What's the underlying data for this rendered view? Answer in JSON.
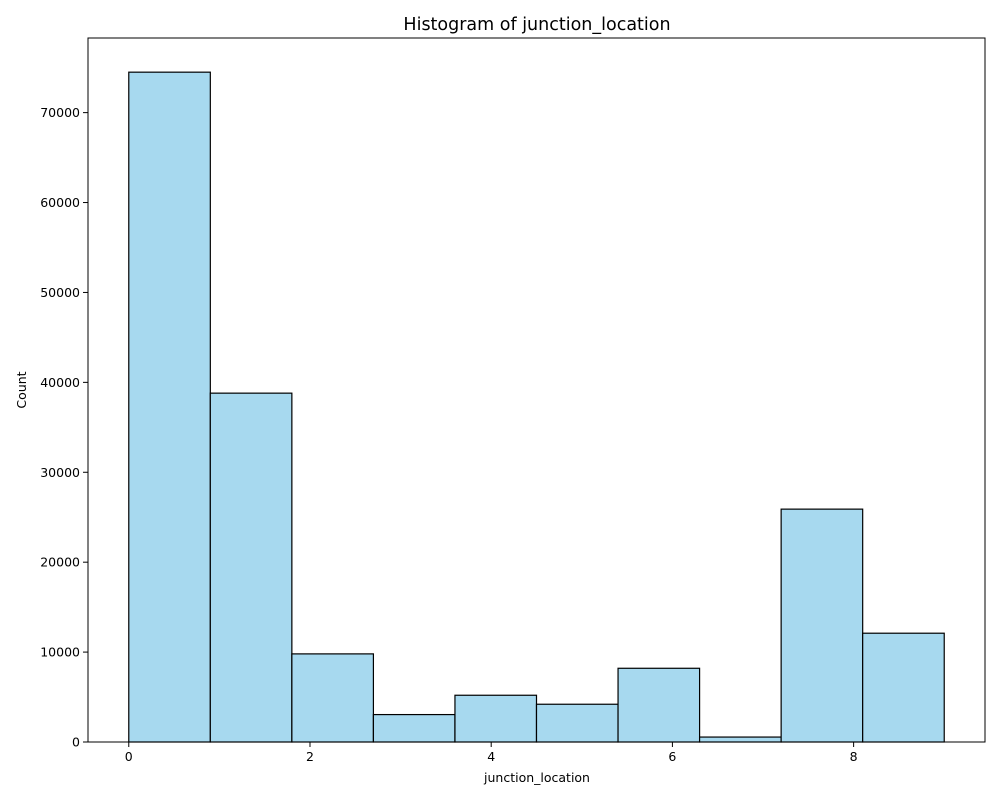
{
  "chart_data": {
    "type": "bar",
    "title": "Histogram of junction_location",
    "xlabel": "junction_location",
    "ylabel": "Count",
    "bin_edges": [
      0,
      0.9,
      1.8,
      2.7,
      3.6,
      4.5,
      5.4,
      6.3,
      7.2,
      8.1,
      9.0
    ],
    "values": [
      74500,
      38800,
      9800,
      3050,
      5200,
      4200,
      8200,
      550,
      25900,
      12100
    ],
    "xlim": [
      -0.45,
      9.45
    ],
    "ylim": [
      0,
      78300
    ],
    "xticks": [
      0,
      2,
      4,
      6,
      8
    ],
    "xtick_labels": [
      "0",
      "2",
      "4",
      "6",
      "8"
    ],
    "yticks": [
      0,
      10000,
      20000,
      30000,
      40000,
      50000,
      60000,
      70000
    ],
    "ytick_labels": [
      "0",
      "10000",
      "20000",
      "30000",
      "40000",
      "50000",
      "60000",
      "70000"
    ],
    "grid": false,
    "legend": "none",
    "bar_color": "#a7d9ef",
    "edge_color": "#000000"
  }
}
